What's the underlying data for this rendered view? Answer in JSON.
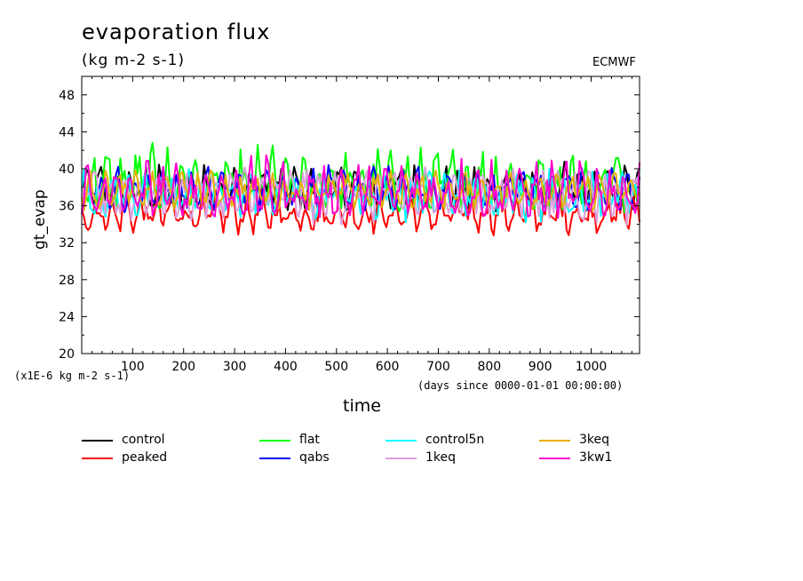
{
  "chart_data": {
    "type": "line",
    "title": "evaporation flux",
    "units": "(kg m-2 s-1)",
    "source": "ECMWF",
    "xlabel": "time",
    "x_units": "(days since 0000-01-01 00:00:00)",
    "ylabel": "gt_evap",
    "y_scale_note": "(x1E-6 kg m-2 s-1)",
    "xlim": [
      0,
      1095
    ],
    "ylim": [
      20,
      50
    ],
    "x_ticks": [
      100,
      200,
      300,
      400,
      500,
      600,
      700,
      800,
      900,
      1000
    ],
    "y_ticks": [
      20,
      24,
      28,
      32,
      36,
      40,
      44,
      48
    ],
    "grid": false,
    "legend_position": "bottom",
    "series": [
      {
        "name": "control",
        "color": "#000000",
        "mean": 37.6,
        "range": [
          34.5,
          41.5
        ]
      },
      {
        "name": "peaked",
        "color": "#ff0000",
        "mean": 35.0,
        "range": [
          32.3,
          38.5
        ]
      },
      {
        "name": "flat",
        "color": "#00ff00",
        "mean": 38.2,
        "range": [
          34.5,
          43.8
        ]
      },
      {
        "name": "qabs",
        "color": "#0000ff",
        "mean": 37.8,
        "range": [
          34.5,
          41.0
        ]
      },
      {
        "name": "control5n",
        "color": "#00ffff",
        "mean": 37.2,
        "range": [
          33.5,
          41.0
        ]
      },
      {
        "name": "1keq",
        "color": "#dda0dd",
        "mean": 37.3,
        "range": [
          33.0,
          41.2
        ]
      },
      {
        "name": "3keq",
        "color": "#e6b000",
        "mean": 37.5,
        "range": [
          35.0,
          40.5
        ]
      },
      {
        "name": "3kw1",
        "color": "#ff00cc",
        "mean": 37.0,
        "range": [
          34.0,
          42.5
        ]
      }
    ]
  }
}
